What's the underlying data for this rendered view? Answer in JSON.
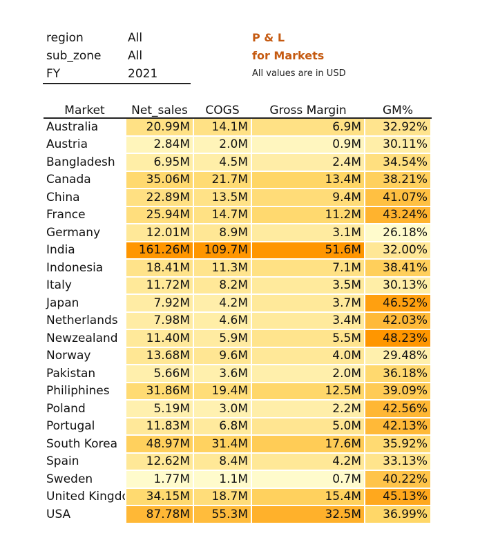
{
  "filters": [
    {
      "key": "region",
      "value": "All"
    },
    {
      "key": "sub_zone",
      "value": "All"
    },
    {
      "key": "FY",
      "value": "2021"
    }
  ],
  "title": {
    "line1": "P & L",
    "line2": "for Markets",
    "subtitle": "All values are in USD"
  },
  "table": {
    "headers": [
      "Market",
      "Net_sales",
      "COGS",
      "Gross Margin",
      "GM%"
    ],
    "rows": [
      {
        "market": "Australia",
        "net_sales": "20.99M",
        "cogs": "14.1M",
        "gross_margin": "6.9M",
        "gm_pct": "32.92%"
      },
      {
        "market": "Austria",
        "net_sales": "2.84M",
        "cogs": "2.0M",
        "gross_margin": "0.9M",
        "gm_pct": "30.11%"
      },
      {
        "market": "Bangladesh",
        "net_sales": "6.95M",
        "cogs": "4.5M",
        "gross_margin": "2.4M",
        "gm_pct": "34.54%"
      },
      {
        "market": "Canada",
        "net_sales": "35.06M",
        "cogs": "21.7M",
        "gross_margin": "13.4M",
        "gm_pct": "38.21%"
      },
      {
        "market": "China",
        "net_sales": "22.89M",
        "cogs": "13.5M",
        "gross_margin": "9.4M",
        "gm_pct": "41.07%"
      },
      {
        "market": "France",
        "net_sales": "25.94M",
        "cogs": "14.7M",
        "gross_margin": "11.2M",
        "gm_pct": "43.24%"
      },
      {
        "market": "Germany",
        "net_sales": "12.01M",
        "cogs": "8.9M",
        "gross_margin": "3.1M",
        "gm_pct": "26.18%"
      },
      {
        "market": "India",
        "net_sales": "161.26M",
        "cogs": "109.7M",
        "gross_margin": "51.6M",
        "gm_pct": "32.00%"
      },
      {
        "market": "Indonesia",
        "net_sales": "18.41M",
        "cogs": "11.3M",
        "gross_margin": "7.1M",
        "gm_pct": "38.41%"
      },
      {
        "market": "Italy",
        "net_sales": "11.72M",
        "cogs": "8.2M",
        "gross_margin": "3.5M",
        "gm_pct": "30.13%"
      },
      {
        "market": "Japan",
        "net_sales": "7.92M",
        "cogs": "4.2M",
        "gross_margin": "3.7M",
        "gm_pct": "46.52%"
      },
      {
        "market": "Netherlands",
        "net_sales": "7.98M",
        "cogs": "4.6M",
        "gross_margin": "3.4M",
        "gm_pct": "42.03%"
      },
      {
        "market": "Newzealand",
        "net_sales": "11.40M",
        "cogs": "5.9M",
        "gross_margin": "5.5M",
        "gm_pct": "48.23%"
      },
      {
        "market": "Norway",
        "net_sales": "13.68M",
        "cogs": "9.6M",
        "gross_margin": "4.0M",
        "gm_pct": "29.48%"
      },
      {
        "market": "Pakistan",
        "net_sales": "5.66M",
        "cogs": "3.6M",
        "gross_margin": "2.0M",
        "gm_pct": "36.18%"
      },
      {
        "market": "Philiphines",
        "net_sales": "31.86M",
        "cogs": "19.4M",
        "gross_margin": "12.5M",
        "gm_pct": "39.09%"
      },
      {
        "market": "Poland",
        "net_sales": "5.19M",
        "cogs": "3.0M",
        "gross_margin": "2.2M",
        "gm_pct": "42.56%"
      },
      {
        "market": "Portugal",
        "net_sales": "11.83M",
        "cogs": "6.8M",
        "gross_margin": "5.0M",
        "gm_pct": "42.13%"
      },
      {
        "market": "South Korea",
        "net_sales": "48.97M",
        "cogs": "31.4M",
        "gross_margin": "17.6M",
        "gm_pct": "35.92%"
      },
      {
        "market": "Spain",
        "net_sales": "12.62M",
        "cogs": "8.4M",
        "gross_margin": "4.2M",
        "gm_pct": "33.13%"
      },
      {
        "market": "Sweden",
        "net_sales": "1.77M",
        "cogs": "1.1M",
        "gross_margin": "0.7M",
        "gm_pct": "40.22%"
      },
      {
        "market": "United Kingdom",
        "net_sales": "34.15M",
        "cogs": "18.7M",
        "gross_margin": "15.4M",
        "gm_pct": "45.13%"
      },
      {
        "market": "USA",
        "net_sales": "87.78M",
        "cogs": "55.3M",
        "gross_margin": "32.5M",
        "gm_pct": "36.99%"
      }
    ]
  }
}
